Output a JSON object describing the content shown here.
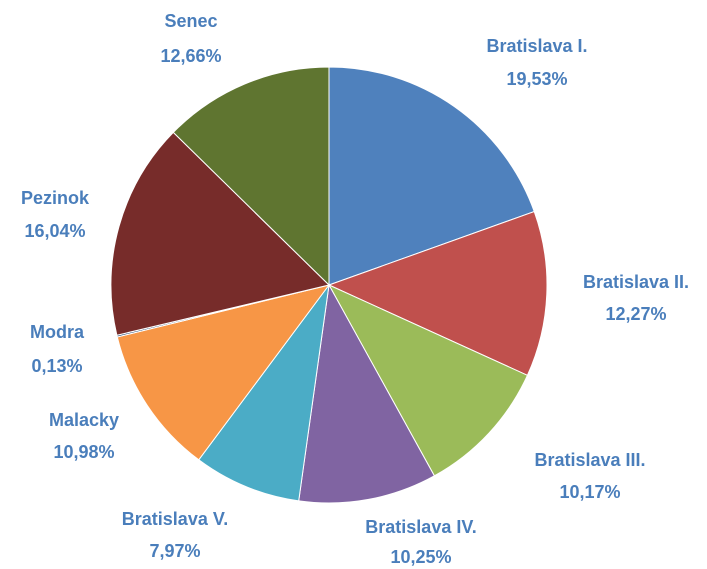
{
  "chart_data": {
    "type": "pie",
    "categories": [
      "Bratislava I.",
      "Bratislava II.",
      "Bratislava III.",
      "Bratislava IV.",
      "Bratislava V.",
      "Malacky",
      "Modra",
      "Pezinok",
      "Senec"
    ],
    "values": [
      19.53,
      12.27,
      10.17,
      10.25,
      7.97,
      10.98,
      0.13,
      16.04,
      12.66
    ],
    "value_labels": [
      "19,53%",
      "12,27%",
      "10,17%",
      "10,25%",
      "7,97%",
      "10,98%",
      "0,13%",
      "16,04%",
      "12,66%"
    ],
    "colors": [
      "#4f81bd",
      "#c0504d",
      "#9bbb59",
      "#8064a2",
      "#4bacc6",
      "#f79646",
      "#2c4d75",
      "#772c2a",
      "#5f7530"
    ]
  }
}
